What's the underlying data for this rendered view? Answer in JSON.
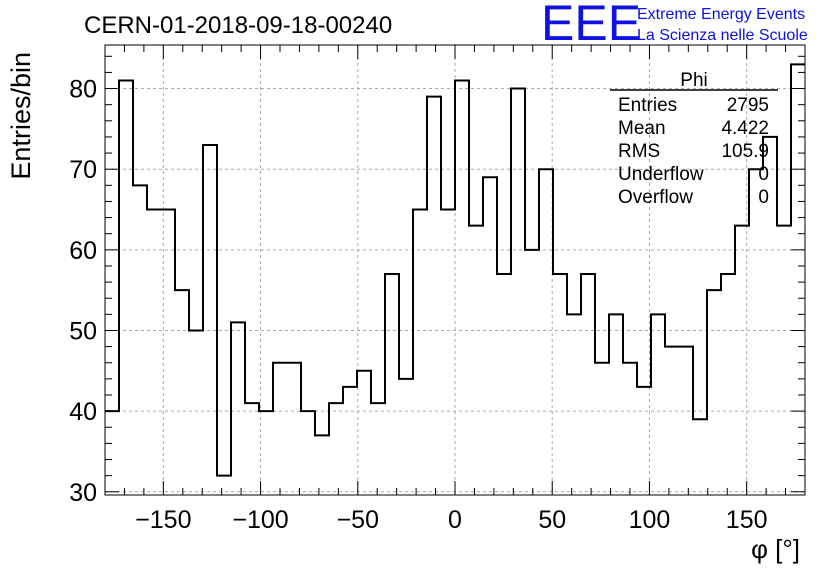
{
  "chart_data": {
    "type": "bar",
    "title": "CERN-01-2018-09-18-00240",
    "xlabel": "φ [°]",
    "ylabel": "Entries/bin",
    "xlim": [
      -180,
      180
    ],
    "ylim": [
      29.6,
      85.4
    ],
    "grid": true,
    "bin_width": 7.2,
    "x_ticks": [
      -150,
      -100,
      -50,
      0,
      50,
      100,
      150
    ],
    "x_tick_labels": [
      "−150",
      "−100",
      "−50",
      "0",
      "50",
      "100",
      "150"
    ],
    "y_ticks": [
      30,
      40,
      50,
      60,
      70,
      80
    ],
    "y_tick_labels": [
      "30",
      "40",
      "50",
      "60",
      "70",
      "80"
    ],
    "values": [
      40,
      81,
      68,
      65,
      65,
      55,
      50,
      73,
      32,
      51,
      41,
      40,
      46,
      46,
      40,
      37,
      41,
      43,
      45,
      41,
      57,
      44,
      65,
      79,
      65,
      81,
      63,
      69,
      57,
      80,
      60,
      70,
      57,
      52,
      57,
      46,
      52,
      46,
      43,
      52,
      48,
      48,
      39,
      55,
      57,
      63,
      70,
      74,
      63,
      83
    ],
    "stats": {
      "name": "Phi",
      "rows": [
        {
          "label": "Entries",
          "value": "2795"
        },
        {
          "label": "Mean",
          "value": "4.422"
        },
        {
          "label": "RMS",
          "value": "105.9"
        },
        {
          "label": "Underflow",
          "value": "0"
        },
        {
          "label": "Overflow",
          "value": "0"
        }
      ]
    }
  },
  "logo": {
    "mark": "EEE",
    "line1": "Extreme Energy Events",
    "line2": "La Scienza nelle Scuole",
    "color": "#1010e0"
  }
}
